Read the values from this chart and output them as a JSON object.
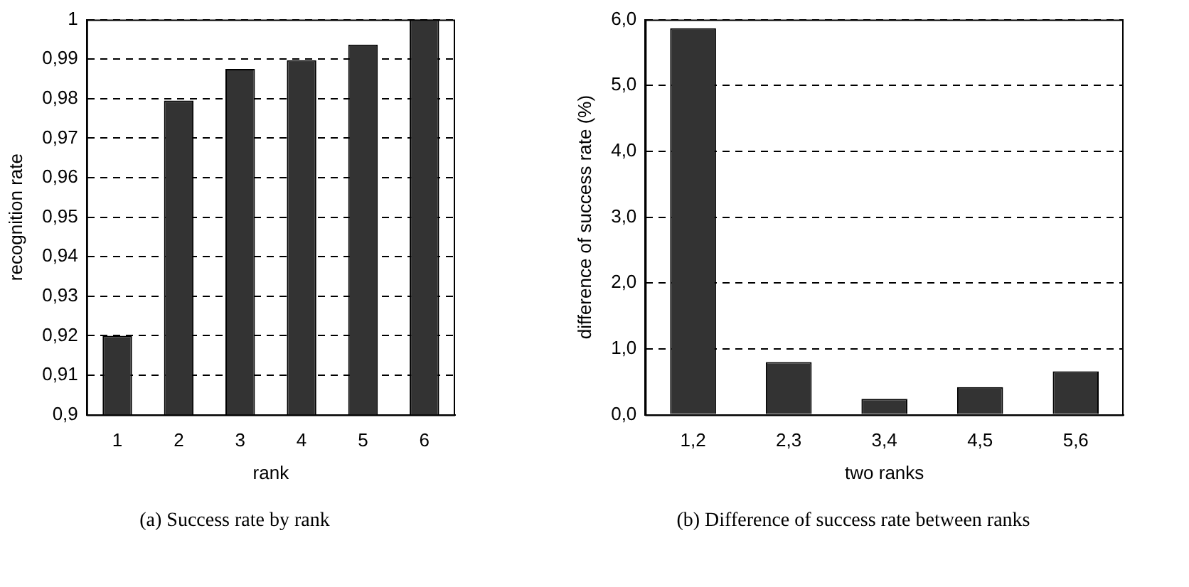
{
  "chart_data": [
    {
      "type": "bar",
      "categories": [
        "1",
        "2",
        "3",
        "4",
        "5",
        "6"
      ],
      "values": [
        0.92,
        0.9795,
        0.9875,
        0.9897,
        0.9937,
        1.0
      ],
      "color": "#333333",
      "xlabel": "rank",
      "ylabel": "recognition rate",
      "ylim": [
        0.9,
        1
      ],
      "yticks": [
        {
          "value": 0.9,
          "label": "0,9"
        },
        {
          "value": 0.91,
          "label": "0,91"
        },
        {
          "value": 0.92,
          "label": "0,92"
        },
        {
          "value": 0.93,
          "label": "0,93"
        },
        {
          "value": 0.94,
          "label": "0,94"
        },
        {
          "value": 0.95,
          "label": "0,95"
        },
        {
          "value": 0.96,
          "label": "0,96"
        },
        {
          "value": 0.97,
          "label": "0,97"
        },
        {
          "value": 0.98,
          "label": "0,98"
        },
        {
          "value": 0.99,
          "label": "0,99"
        },
        {
          "value": 1,
          "label": "1"
        }
      ],
      "grid": "y",
      "annotations": [
        "(a) Success rate by rank"
      ]
    },
    {
      "type": "bar",
      "categories": [
        "1,2",
        "2,3",
        "3,4",
        "4,5",
        "5,6"
      ],
      "values": [
        5.87,
        0.8,
        0.24,
        0.42,
        0.66
      ],
      "color": "#333333",
      "xlabel": "two ranks",
      "ylabel": "difference of success rate (%)",
      "ylim": [
        0,
        6
      ],
      "yticks": [
        {
          "value": 0,
          "label": "0,0"
        },
        {
          "value": 1,
          "label": "1,0"
        },
        {
          "value": 2,
          "label": "2,0"
        },
        {
          "value": 3,
          "label": "3,0"
        },
        {
          "value": 4,
          "label": "4,0"
        },
        {
          "value": 5,
          "label": "5,0"
        },
        {
          "value": 6,
          "label": "6,0"
        }
      ],
      "grid": "y",
      "annotations": [
        "(b) Difference of success rate between ranks"
      ]
    }
  ]
}
